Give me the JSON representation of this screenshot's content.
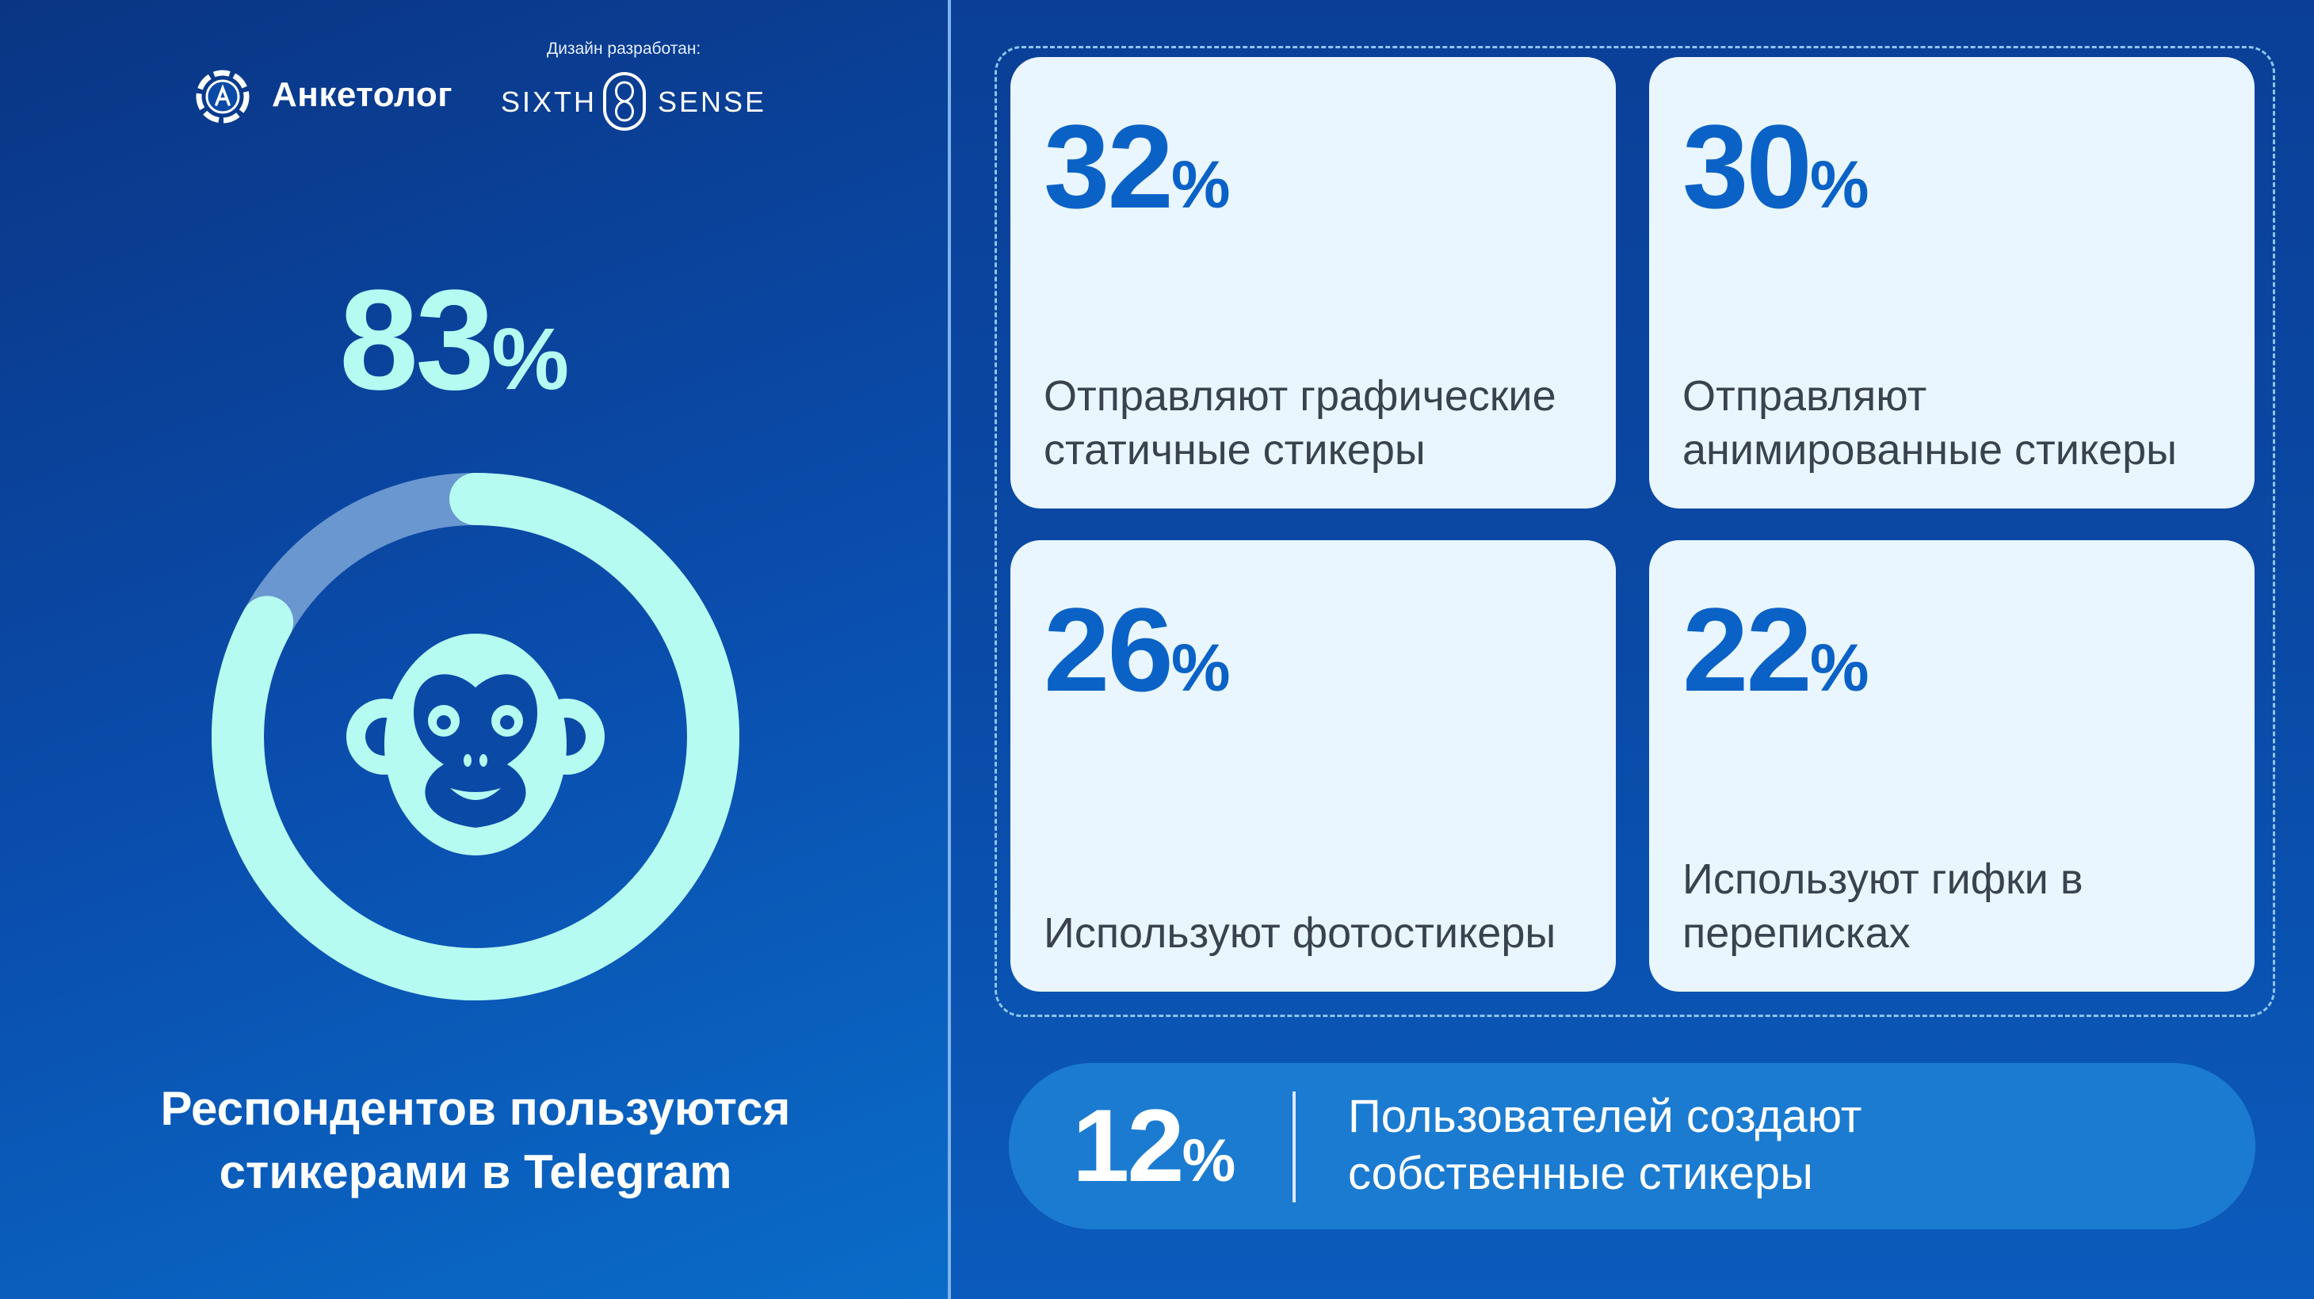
{
  "header": {
    "brand_name": "Анкетолог",
    "design_label": "Дизайн разработан:",
    "partner_left": "SIXTH",
    "partner_right": "SENSE"
  },
  "main_stat": {
    "value": "83",
    "unit": "%",
    "caption_line1": "Респондентов пользуются",
    "caption_line2": "стикерами в Telegram",
    "ring_fraction": 0.83,
    "icon": "monkey-icon"
  },
  "cards": [
    {
      "value": "32",
      "unit": "%",
      "text": "Отправляют графические статичные стикеры"
    },
    {
      "value": "30",
      "unit": "%",
      "text": "Отправляют анимированные стикеры"
    },
    {
      "value": "26",
      "unit": "%",
      "text": "Используют фотостикеры"
    },
    {
      "value": "22",
      "unit": "%",
      "text": "Используют гифки в переписках"
    }
  ],
  "bottom_stat": {
    "value": "12",
    "unit": "%",
    "text_line1": "Пользователей создают",
    "text_line2": "собственные стикеры"
  },
  "colors": {
    "accent_mint": "#b6fbf2",
    "card_bg": "#e9f6ff",
    "card_number": "#0b62c6",
    "background_blue": "#0a4aa6"
  }
}
